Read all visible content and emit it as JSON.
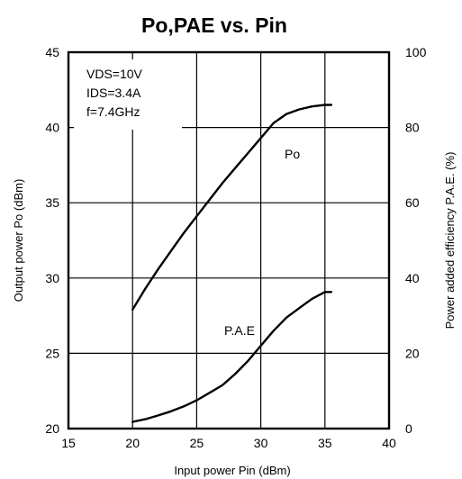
{
  "chart_data": {
    "type": "line",
    "title": "Po,PAE vs. Pin",
    "xlabel": "Input power Pin (dBm)",
    "ylabel": "Output power Po (dBm)",
    "y2label": "Power added efficiency  P.A.E. (%)",
    "xlim": [
      15,
      40
    ],
    "ylim": [
      20,
      45
    ],
    "y2lim": [
      0,
      100
    ],
    "x_ticks": [
      "15",
      "20",
      "25",
      "30",
      "35",
      "40"
    ],
    "y_ticks": [
      "20",
      "25",
      "30",
      "35",
      "40",
      "45"
    ],
    "y2_ticks": [
      "0",
      "20",
      "40",
      "60",
      "80",
      "100"
    ],
    "grid": true,
    "annotation_lines": [
      "VDS=10V",
      "IDS=3.4A",
      "f=7.4GHz"
    ],
    "series": [
      {
        "name": "Po",
        "axis": "left",
        "x": [
          20,
          21,
          22,
          23,
          24,
          25,
          26,
          27,
          28,
          29,
          30,
          31,
          32,
          33,
          34,
          35,
          35.5
        ],
        "values": [
          27.9,
          29.3,
          30.6,
          31.8,
          33.0,
          34.1,
          35.2,
          36.3,
          37.3,
          38.3,
          39.3,
          40.3,
          40.9,
          41.2,
          41.4,
          41.5,
          41.5
        ]
      },
      {
        "name": "P.A.E",
        "axis": "right",
        "x": [
          20,
          21,
          22,
          23,
          24,
          25,
          26,
          27,
          28,
          29,
          30,
          31,
          32,
          33,
          34,
          35,
          35.5
        ],
        "values": [
          1.8,
          2.5,
          3.5,
          4.6,
          5.9,
          7.5,
          9.5,
          11.5,
          14.5,
          18.0,
          22.0,
          26.0,
          29.5,
          32.0,
          34.5,
          36.3,
          36.3
        ]
      }
    ]
  }
}
